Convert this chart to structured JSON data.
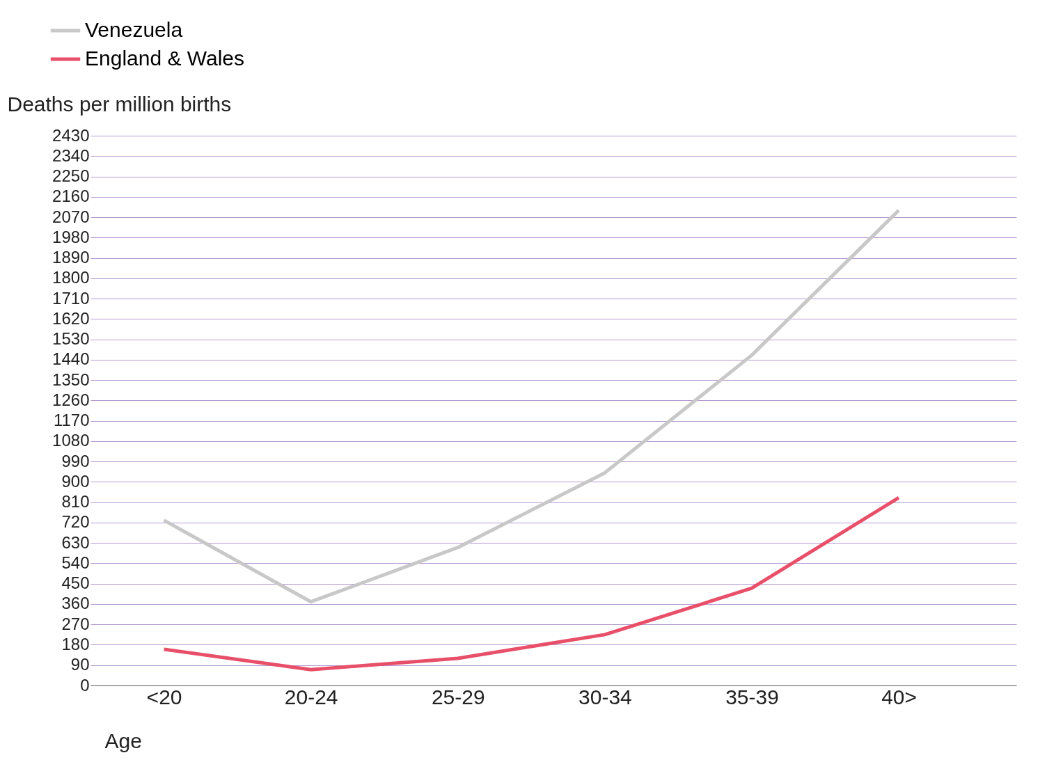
{
  "chart_data": {
    "type": "line",
    "ylabel": "Deaths per million births",
    "xlabel": "Age",
    "categories": [
      "<20",
      "20-24",
      "25-29",
      "30-34",
      "35-39",
      "40>"
    ],
    "series": [
      {
        "name": "Venezuela",
        "color": "#c8c8c8",
        "values": [
          730,
          370,
          610,
          940,
          1460,
          2100
        ]
      },
      {
        "name": "England & Wales",
        "color": "#e8506a",
        "values": [
          160,
          70,
          120,
          225,
          430,
          830
        ]
      }
    ],
    "ylim": [
      0,
      2430
    ],
    "yticks": [
      0,
      90,
      180,
      270,
      360,
      450,
      540,
      630,
      720,
      810,
      900,
      990,
      1080,
      1170,
      1260,
      1350,
      1440,
      1530,
      1620,
      1710,
      1800,
      1890,
      1980,
      2070,
      2160,
      2250,
      2340,
      2430
    ],
    "grid": "y",
    "legend": "top left",
    "marker": "none",
    "line_style": "solid"
  }
}
